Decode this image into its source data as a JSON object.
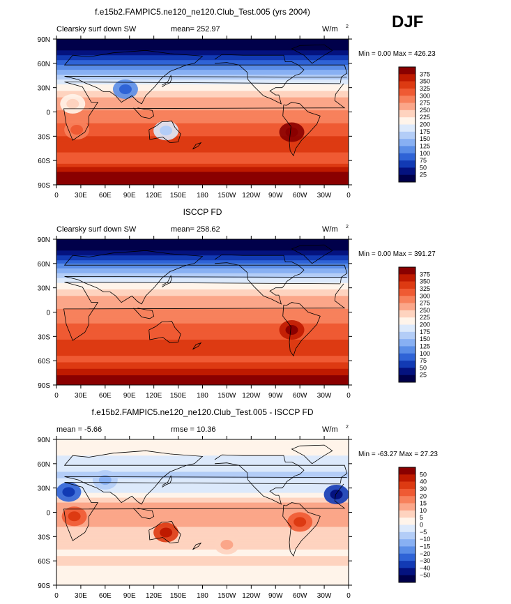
{
  "season": "DJF",
  "unit_label": "W/m",
  "unit_exp": "2",
  "chart_data": [
    {
      "type": "heatmap",
      "title": "f.e15b2.FAMPIC5.ne120_ne120.Club_Test.005 (yrs 2004)",
      "left_label": "Clearsky surf down SW",
      "stat_label": "mean= 252.97",
      "minmax_label": "Min =    0.00 Max = 426.23",
      "x_ticks": [
        "0",
        "30E",
        "60E",
        "90E",
        "120E",
        "150E",
        "180",
        "150W",
        "120W",
        "90W",
        "60W",
        "30W",
        "0"
      ],
      "y_ticks": [
        "90N",
        "60N",
        "30N",
        "0",
        "30S",
        "60S",
        "90S"
      ],
      "colorbar_levels": [
        "375",
        "350",
        "325",
        "300",
        "275",
        "250",
        "225",
        "200",
        "175",
        "150",
        "125",
        "100",
        "75",
        "50",
        "25"
      ],
      "colors": [
        "#8a0000",
        "#bf1a00",
        "#dd3a12",
        "#ef5a33",
        "#f7815c",
        "#fba689",
        "#fed3bf",
        "#fff4ea",
        "#dce9fb",
        "#b3cdf7",
        "#88b0f3",
        "#5a8de7",
        "#2f63d6",
        "#123ab4",
        "#04127f",
        "#00004a"
      ],
      "lat_profile": [
        [
          90,
          0
        ],
        [
          80,
          0
        ],
        [
          72,
          1
        ],
        [
          66,
          2
        ],
        [
          62,
          3
        ],
        [
          55,
          4
        ],
        [
          48,
          5
        ],
        [
          42,
          6
        ],
        [
          36,
          7
        ],
        [
          30,
          8
        ],
        [
          22,
          9
        ],
        [
          14,
          10
        ],
        [
          6,
          10
        ],
        [
          -2,
          11
        ],
        [
          -10,
          11
        ],
        [
          -18,
          12
        ],
        [
          -26,
          12
        ],
        [
          -34,
          13
        ],
        [
          -44,
          13
        ],
        [
          -54,
          12
        ],
        [
          -62,
          12
        ],
        [
          -70,
          14
        ],
        [
          -80,
          15
        ],
        [
          -90,
          15
        ]
      ],
      "blobs": [
        {
          "lon": 20,
          "lat": 10,
          "level": 8
        },
        {
          "lon": 25,
          "lat": -22,
          "level": 11
        },
        {
          "lon": 135,
          "lat": -23,
          "level": 7
        },
        {
          "lon": 290,
          "lat": -25,
          "level": 15
        },
        {
          "lon": 85,
          "lat": 28,
          "level": 4
        }
      ]
    },
    {
      "type": "heatmap",
      "title": "ISCCP FD",
      "left_label": "Clearsky surf down SW",
      "stat_label": "mean= 258.62",
      "minmax_label": "Min =    0.00 Max = 391.27",
      "x_ticks": [
        "0",
        "30E",
        "60E",
        "90E",
        "120E",
        "150E",
        "180",
        "150W",
        "120W",
        "90W",
        "60W",
        "30W",
        "0"
      ],
      "y_ticks": [
        "90N",
        "60N",
        "30N",
        "0",
        "30S",
        "60S",
        "90S"
      ],
      "colorbar_levels": [
        "375",
        "350",
        "325",
        "300",
        "275",
        "250",
        "225",
        "200",
        "175",
        "150",
        "125",
        "100",
        "75",
        "50",
        "25"
      ],
      "colors": [
        "#8a0000",
        "#bf1a00",
        "#dd3a12",
        "#ef5a33",
        "#f7815c",
        "#fba689",
        "#fed3bf",
        "#fff4ea",
        "#dce9fb",
        "#b3cdf7",
        "#88b0f3",
        "#5a8de7",
        "#2f63d6",
        "#123ab4",
        "#04127f",
        "#00004a"
      ],
      "lat_profile": [
        [
          90,
          0
        ],
        [
          80,
          0
        ],
        [
          72,
          1
        ],
        [
          66,
          2
        ],
        [
          62,
          3
        ],
        [
          56,
          4
        ],
        [
          50,
          5
        ],
        [
          44,
          6
        ],
        [
          38,
          7
        ],
        [
          32,
          8
        ],
        [
          24,
          9
        ],
        [
          16,
          10
        ],
        [
          8,
          10
        ],
        [
          0,
          11
        ],
        [
          -10,
          11
        ],
        [
          -20,
          12
        ],
        [
          -30,
          12
        ],
        [
          -40,
          13
        ],
        [
          -50,
          13
        ],
        [
          -58,
          12
        ],
        [
          -66,
          13
        ],
        [
          -74,
          14
        ],
        [
          -82,
          15
        ],
        [
          -90,
          15
        ]
      ],
      "blobs": [
        {
          "lon": 290,
          "lat": -22,
          "level": 14
        }
      ]
    },
    {
      "type": "heatmap",
      "title": "f.e15b2.FAMPIC5.ne120_ne120.Club_Test.005 - ISCCP FD",
      "left_label": "mean =   -5.66",
      "stat_label": "rmse =   10.36",
      "minmax_label": "Min = -63.27 Max =  27.23",
      "x_ticks": [
        "0",
        "30E",
        "60E",
        "90E",
        "120E",
        "150E",
        "180",
        "150W",
        "120W",
        "90W",
        "60W",
        "30W",
        "0"
      ],
      "y_ticks": [
        "90N",
        "60N",
        "30N",
        "0",
        "30S",
        "60S",
        "90S"
      ],
      "colorbar_levels": [
        "50",
        "40",
        "30",
        "20",
        "15",
        "10",
        "5",
        "0",
        "−5",
        "−10",
        "−15",
        "−20",
        "−30",
        "−40",
        "−50"
      ],
      "colors": [
        "#8a0000",
        "#bf1a00",
        "#dd3a12",
        "#ef5a33",
        "#f7815c",
        "#fba689",
        "#fed3bf",
        "#fff4ea",
        "#dce9fb",
        "#b3cdf7",
        "#88b0f3",
        "#5a8de7",
        "#2f63d6",
        "#123ab4",
        "#04127f",
        "#00004a"
      ],
      "lat_profile": [
        [
          90,
          8
        ],
        [
          76,
          8
        ],
        [
          66,
          7
        ],
        [
          56,
          7
        ],
        [
          46,
          6
        ],
        [
          36,
          7
        ],
        [
          26,
          7
        ],
        [
          20,
          8
        ],
        [
          14,
          9
        ],
        [
          8,
          10
        ],
        [
          2,
          10
        ],
        [
          -6,
          10
        ],
        [
          -14,
          10
        ],
        [
          -22,
          9
        ],
        [
          -30,
          9
        ],
        [
          -40,
          9
        ],
        [
          -50,
          8
        ],
        [
          -60,
          9
        ],
        [
          -70,
          8
        ],
        [
          -80,
          8
        ],
        [
          -90,
          8
        ]
      ],
      "blobs": [
        {
          "lon": 22,
          "lat": -5,
          "level": 12
        },
        {
          "lon": 135,
          "lat": -25,
          "level": 13
        },
        {
          "lon": 300,
          "lat": -12,
          "level": 12
        },
        {
          "lon": 15,
          "lat": 25,
          "level": 3
        },
        {
          "lon": 345,
          "lat": 22,
          "level": 2
        },
        {
          "lon": 60,
          "lat": 40,
          "level": 6
        },
        {
          "lon": 210,
          "lat": -40,
          "level": 9
        }
      ]
    }
  ]
}
